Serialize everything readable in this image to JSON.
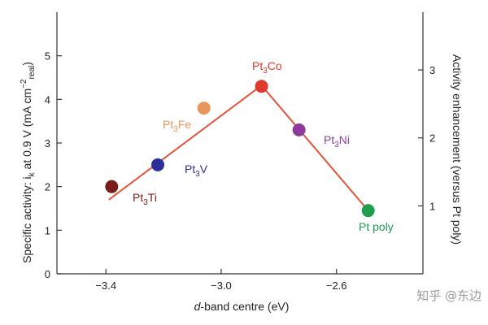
{
  "chart_data": {
    "type": "scatter",
    "xlabel": "d-band centre (eV)",
    "ylabel_left": "Specific activity: i_k at 0.9 V (mA cm⁻²_real)",
    "ylabel_right": "Activity enhancement (versus Pt poly)",
    "xlim": [
      -3.57,
      -2.3
    ],
    "ylim": [
      0,
      6
    ],
    "ylim_right": [
      0,
      3.85
    ],
    "x_ticks": [
      -3.4,
      -3.0,
      -2.6
    ],
    "x_tick_labels": [
      "−3.4",
      "−3.0",
      "−2.6"
    ],
    "y_ticks": [
      0,
      1,
      2,
      3,
      4,
      5
    ],
    "y_right_ticks": [
      1,
      2,
      3
    ],
    "points": [
      {
        "name": "Pt3Ti",
        "x": -3.38,
        "y": 2.0,
        "color": "#7b1c1c"
      },
      {
        "name": "Pt3V",
        "x": -3.22,
        "y": 2.5,
        "color": "#2e2e9a"
      },
      {
        "name": "Pt3Fe",
        "x": -3.06,
        "y": 3.8,
        "color": "#e8965a"
      },
      {
        "name": "Pt3Co",
        "x": -2.86,
        "y": 4.3,
        "color": "#e03a2e"
      },
      {
        "name": "Pt3Ni",
        "x": -2.73,
        "y": 3.3,
        "color": "#8e3b9a"
      },
      {
        "name": "Pt poly",
        "x": -2.49,
        "y": 1.45,
        "color": "#1e9e4e"
      }
    ],
    "trend_line": {
      "x": [
        -3.39,
        -2.86,
        -2.49
      ],
      "y": [
        1.7,
        4.32,
        1.45
      ],
      "color": "#e0553a"
    }
  },
  "labels": {
    "pt3ti": {
      "main": "Pt",
      "sub": "3",
      "rest": "Ti",
      "color": "#7b1c1c"
    },
    "pt3v": {
      "main": "Pt",
      "sub": "3",
      "rest": "V",
      "color": "#2e2e9a"
    },
    "pt3fe": {
      "main": "Pt",
      "sub": "3",
      "rest": "Fe",
      "color": "#e8965a"
    },
    "pt3co": {
      "main": "Pt",
      "sub": "3",
      "rest": "Co",
      "color": "#e03a2e"
    },
    "pt3ni": {
      "main": "Pt",
      "sub": "3",
      "rest": "Ni",
      "color": "#8e3b9a"
    },
    "ptpoly": {
      "main": "Pt poly",
      "sub": "",
      "rest": "",
      "color": "#1e9e4e"
    }
  },
  "axis": {
    "ylabel_left_main": "Specific activity: i",
    "ylabel_left_sub_k": "k",
    "ylabel_left_mid": " at 0.9 V (mA cm",
    "ylabel_left_sup": "−2",
    "ylabel_left_sub": "real",
    "ylabel_left_end": ")",
    "xlabel_italic": "d",
    "xlabel_rest": "-band centre (eV)",
    "ylabel_right": "Activity enhancement (versus Pt poly)"
  },
  "watermark": "知乎 @东边"
}
